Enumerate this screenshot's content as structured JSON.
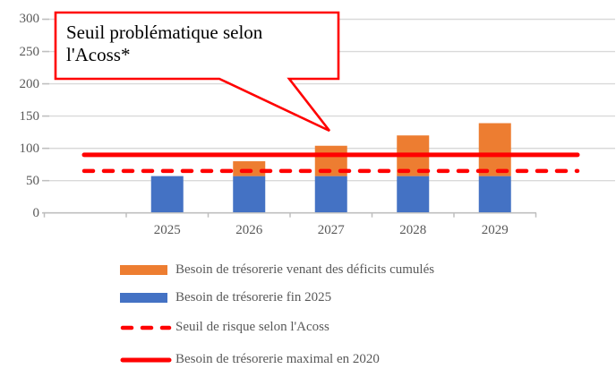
{
  "chart_data": {
    "type": "bar",
    "stacked": true,
    "title": "",
    "categories": [
      "2025",
      "2026",
      "2027",
      "2028",
      "2029"
    ],
    "series": [
      {
        "name": "Besoin de trésorerie fin 2025",
        "color": "#4472C4",
        "values": [
          57,
          57,
          57,
          57,
          57
        ]
      },
      {
        "name": "Besoin de trésorerie venant des déficits cumulés",
        "color": "#ED7D31",
        "values": [
          0,
          23,
          47,
          63,
          82
        ]
      }
    ],
    "reference_lines": [
      {
        "name": "Seuil de risque selon l'Acoss",
        "value": 65,
        "style": "dashed",
        "color": "#FF0000"
      },
      {
        "name": "Besoin de trésorerie maximal en 2020",
        "value": 90,
        "style": "solid",
        "color": "#FF0000"
      }
    ],
    "y_axis": {
      "min": 0,
      "max": 300,
      "tick_interval": 50,
      "ticks": [
        0,
        50,
        100,
        150,
        200,
        250,
        300
      ]
    },
    "grid": true,
    "legend_position": "bottom",
    "annotation": {
      "text": "Seuil problématique selon l'Acoss*",
      "points_to": "2027",
      "border_color": "#FF0000",
      "fill": "#FFFFFF",
      "text_color": "#000000"
    }
  },
  "legend": {
    "items": [
      {
        "label": "Besoin de trésorerie venant des déficits cumulés",
        "swatch": "bar",
        "color": "#ED7D31"
      },
      {
        "label": "Besoin de trésorerie fin 2025",
        "swatch": "bar",
        "color": "#4472C4"
      },
      {
        "label": "Seuil de risque selon l'Acoss",
        "swatch": "dashed-line",
        "color": "#FF0000"
      },
      {
        "label": "Besoin de trésorerie maximal en 2020",
        "swatch": "solid-line",
        "color": "#FF0000"
      }
    ]
  },
  "colors": {
    "gridline": "#D9D9D9",
    "axis": "#BFBFBF",
    "tick_label": "#595959",
    "background": "#FFFFFF"
  }
}
